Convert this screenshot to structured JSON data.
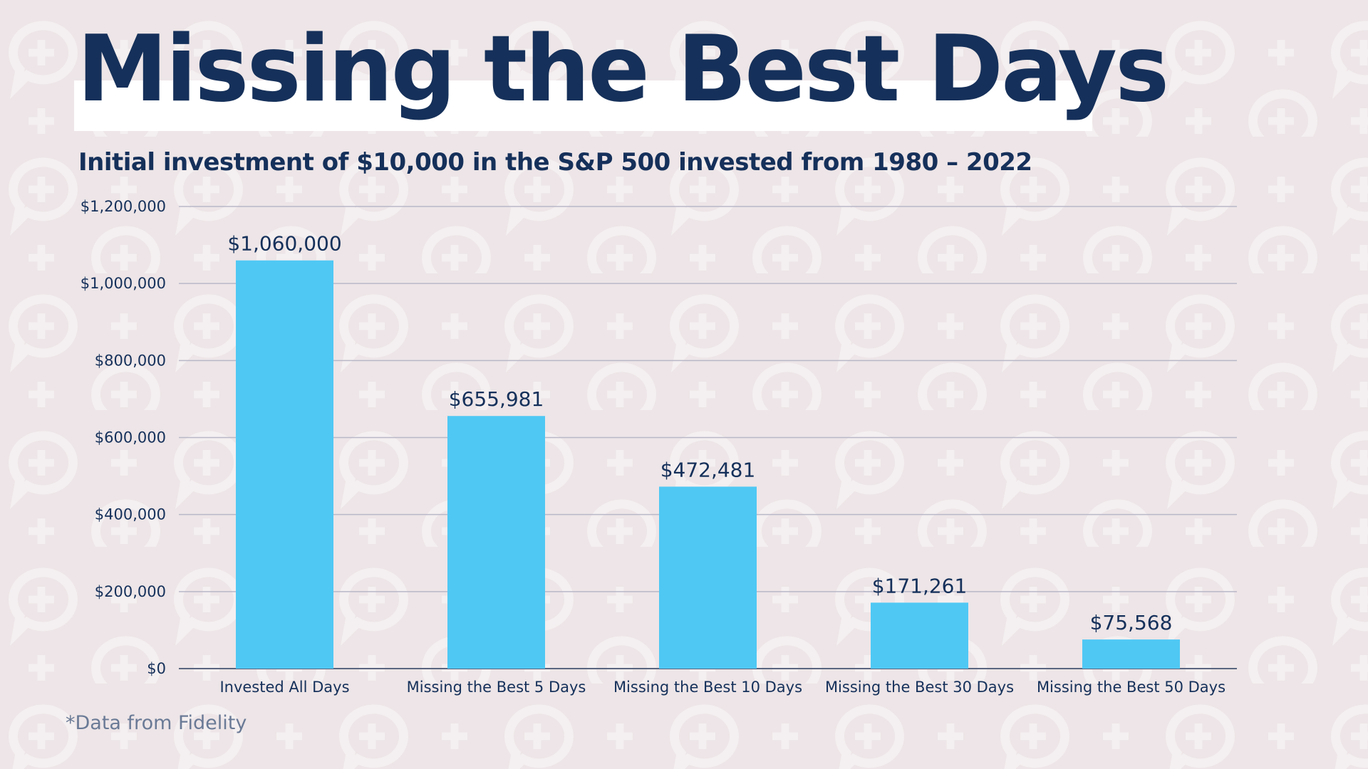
{
  "title": "Missing the Best Days",
  "subtitle": "Initial investment of $10,000 in the S&P 500 invested from 1980 – 2022",
  "footnote": "*Data from Fidelity",
  "colors": {
    "bar": "#4fc8f4",
    "text": "#15305a",
    "background": "#ede5e7",
    "grid": "#b9b8c8"
  },
  "chart_data": {
    "type": "bar",
    "title": "",
    "xlabel": "",
    "ylabel": "",
    "ylim": [
      0,
      1200000
    ],
    "grid": true,
    "categories": [
      "Invested All Days",
      "Missing the Best 5 Days",
      "Missing the Best 10 Days",
      "Missing the Best 30 Days",
      "Missing the Best 50 Days"
    ],
    "values": [
      1060000,
      655981,
      472481,
      171261,
      75568
    ],
    "data_labels": [
      "$1,060,000",
      "$655,981",
      "$472,481",
      "$171,261",
      "$75,568"
    ],
    "yticks": [
      0,
      200000,
      400000,
      600000,
      800000,
      1000000,
      1200000
    ],
    "ytick_labels": [
      "$0",
      "$200,000",
      "$400,000",
      "$600,000",
      "$800,000",
      "$1,000,000",
      "$1,200,000"
    ]
  }
}
